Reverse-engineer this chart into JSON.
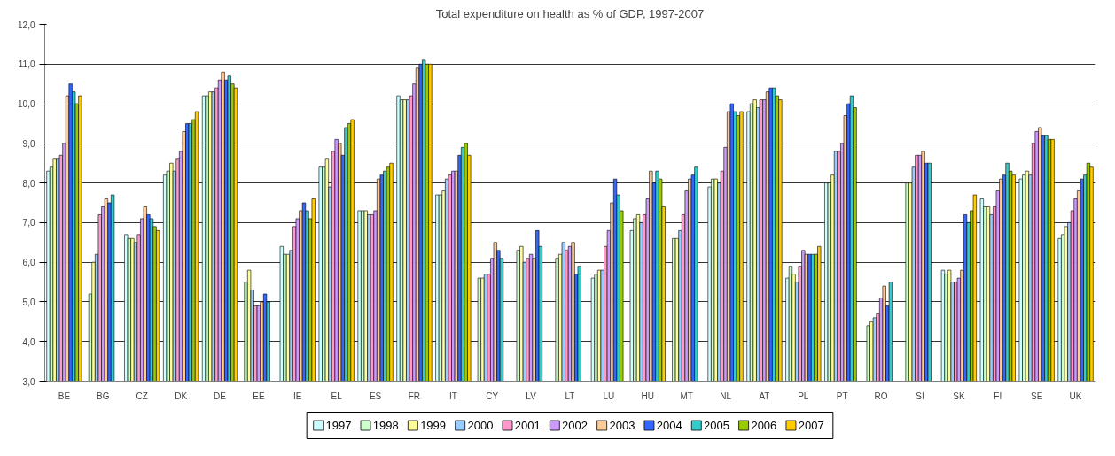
{
  "chart_data": {
    "type": "bar",
    "title": "Total expenditure on health as % of GDP, 1997-2007",
    "categories": [
      "BE",
      "BG",
      "CZ",
      "DK",
      "DE",
      "EE",
      "IE",
      "EL",
      "ES",
      "FR",
      "IT",
      "CY",
      "LV",
      "LT",
      "LU",
      "HU",
      "MT",
      "NL",
      "AT",
      "PL",
      "PT",
      "RO",
      "SI",
      "SK",
      "FI",
      "SE",
      "UK"
    ],
    "series": [
      {
        "name": "1997",
        "color": "#ccffff",
        "values": [
          8.3,
          null,
          6.7,
          8.2,
          10.2,
          null,
          6.4,
          8.4,
          7.3,
          10.2,
          7.7,
          null,
          null,
          null,
          5.6,
          6.8,
          null,
          7.9,
          9.8,
          5.6,
          8.0,
          null,
          null,
          5.8,
          7.6,
          8.1,
          6.6
        ]
      },
      {
        "name": "1998",
        "color": "#ccffcc",
        "values": [
          8.4,
          5.2,
          6.6,
          8.3,
          10.2,
          5.5,
          6.2,
          8.4,
          7.3,
          10.1,
          7.7,
          5.6,
          6.3,
          6.1,
          5.7,
          7.1,
          6.6,
          8.1,
          10.0,
          5.9,
          8.0,
          4.4,
          8.0,
          5.7,
          7.4,
          8.2,
          6.7
        ]
      },
      {
        "name": "1999",
        "color": "#ffff99",
        "values": [
          8.6,
          6.0,
          6.6,
          8.5,
          10.3,
          5.8,
          6.2,
          8.6,
          7.3,
          10.1,
          7.8,
          5.6,
          6.4,
          6.2,
          5.8,
          7.2,
          6.6,
          8.1,
          10.1,
          5.7,
          8.2,
          4.5,
          8.0,
          5.8,
          7.4,
          8.3,
          6.9
        ]
      },
      {
        "name": "2000",
        "color": "#99ccff",
        "values": [
          8.6,
          6.2,
          6.5,
          8.3,
          10.3,
          5.3,
          6.3,
          7.9,
          7.2,
          10.1,
          8.1,
          5.7,
          6.0,
          6.5,
          5.8,
          7.0,
          6.8,
          8.0,
          9.9,
          5.5,
          8.8,
          4.6,
          8.4,
          5.5,
          7.2,
          8.2,
          7.0
        ]
      },
      {
        "name": "2001",
        "color": "#ff99cc",
        "values": [
          8.7,
          7.2,
          6.7,
          8.6,
          10.4,
          4.9,
          6.9,
          8.8,
          7.2,
          10.2,
          8.2,
          5.7,
          6.1,
          6.3,
          6.4,
          7.2,
          7.2,
          8.3,
          10.1,
          5.9,
          8.8,
          4.7,
          8.7,
          5.5,
          7.4,
          9.0,
          7.3
        ]
      },
      {
        "name": "2002",
        "color": "#cc99ff",
        "values": [
          9.0,
          7.4,
          7.1,
          8.8,
          10.6,
          4.9,
          7.1,
          9.1,
          7.3,
          10.5,
          8.3,
          6.1,
          6.2,
          6.4,
          6.8,
          7.6,
          7.8,
          8.9,
          10.1,
          6.3,
          9.0,
          5.1,
          8.7,
          5.6,
          7.8,
          9.3,
          7.6
        ]
      },
      {
        "name": "2003",
        "color": "#ffcc99",
        "values": [
          10.2,
          7.6,
          7.4,
          9.3,
          10.8,
          5.0,
          7.3,
          9.0,
          8.1,
          10.9,
          8.3,
          6.5,
          6.1,
          6.5,
          7.5,
          8.3,
          8.1,
          9.8,
          10.3,
          6.2,
          9.7,
          5.4,
          8.8,
          5.8,
          8.1,
          9.4,
          7.8
        ]
      },
      {
        "name": "2004",
        "color": "#3366ff",
        "values": [
          10.5,
          7.5,
          7.2,
          9.5,
          10.6,
          5.2,
          7.5,
          8.7,
          8.2,
          11.0,
          8.7,
          6.3,
          6.8,
          5.7,
          8.1,
          8.0,
          8.2,
          10.0,
          10.4,
          6.2,
          10.0,
          4.9,
          8.5,
          7.2,
          8.2,
          9.2,
          8.1
        ]
      },
      {
        "name": "2005",
        "color": "#33cccc",
        "values": [
          10.3,
          7.7,
          7.1,
          9.5,
          10.7,
          5.0,
          7.3,
          9.4,
          8.3,
          11.1,
          8.9,
          6.1,
          6.4,
          5.9,
          7.7,
          8.3,
          8.4,
          9.8,
          10.4,
          6.2,
          10.2,
          5.5,
          8.5,
          7.0,
          8.5,
          9.2,
          8.2
        ]
      },
      {
        "name": "2006",
        "color": "#99cc00",
        "values": [
          10.0,
          null,
          6.9,
          9.6,
          10.5,
          null,
          7.1,
          9.5,
          8.4,
          11.0,
          9.0,
          null,
          null,
          null,
          7.3,
          8.1,
          null,
          9.7,
          10.2,
          6.2,
          9.9,
          null,
          null,
          7.3,
          8.3,
          9.1,
          8.5
        ]
      },
      {
        "name": "2007",
        "color": "#ffcc00",
        "values": [
          10.2,
          null,
          6.8,
          9.8,
          10.4,
          null,
          7.6,
          9.6,
          8.5,
          11.0,
          8.7,
          null,
          null,
          null,
          null,
          7.4,
          null,
          9.8,
          10.1,
          6.4,
          null,
          null,
          null,
          7.7,
          8.2,
          9.1,
          8.4
        ]
      }
    ],
    "ylim": [
      3,
      12
    ],
    "yticks": [
      {
        "value": 3,
        "label": "3,0"
      },
      {
        "value": 4,
        "label": "4,0"
      },
      {
        "value": 5,
        "label": "5,0"
      },
      {
        "value": 6,
        "label": "6,0"
      },
      {
        "value": 7,
        "label": "7,0"
      },
      {
        "value": 8,
        "label": "8,0"
      },
      {
        "value": 9,
        "label": "9,0"
      },
      {
        "value": 10,
        "label": "10,0"
      },
      {
        "value": 11,
        "label": "11,0"
      },
      {
        "value": 12,
        "label": "12,0"
      }
    ],
    "grid": "y",
    "legend": "bottom"
  }
}
